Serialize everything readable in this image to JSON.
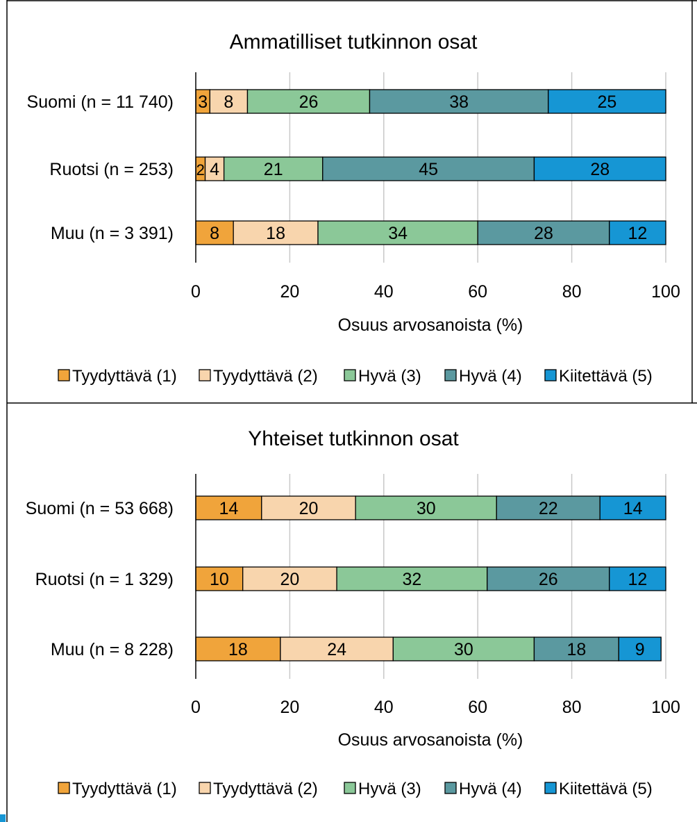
{
  "chart_data": [
    {
      "type": "bar",
      "orientation": "horizontal",
      "stacked": true,
      "title": "Ammatilliset tutkinnon osat",
      "xlabel": "Osuus arvosanoista (%)",
      "ylabel": "",
      "xlim": [
        0,
        100
      ],
      "xticks": [
        "0",
        "20",
        "40",
        "60",
        "80",
        "100"
      ],
      "grid": true,
      "legend_position": "bottom",
      "categories": [
        "Suomi (n = 11 740)",
        "Ruotsi (n = 253)",
        "Muu (n = 3 391)"
      ],
      "series": [
        {
          "name": "Tyydyttävä (1)",
          "color": "#F0A43B",
          "values": [
            3,
            2,
            8
          ]
        },
        {
          "name": "Tyydyttävä (2)",
          "color": "#F8D5AD",
          "values": [
            8,
            4,
            18
          ]
        },
        {
          "name": "Hyvä (3)",
          "color": "#8BC898",
          "values": [
            26,
            21,
            34
          ]
        },
        {
          "name": "Hyvä (4)",
          "color": "#5B99A0",
          "values": [
            38,
            45,
            28
          ]
        },
        {
          "name": "Kiitettävä (5)",
          "color": "#1696D4",
          "values": [
            25,
            28,
            12
          ]
        }
      ]
    },
    {
      "type": "bar",
      "orientation": "horizontal",
      "stacked": true,
      "title": "Yhteiset tutkinnon osat",
      "xlabel": "Osuus arvosanoista (%)",
      "ylabel": "",
      "xlim": [
        0,
        100
      ],
      "xticks": [
        "0",
        "20",
        "40",
        "60",
        "80",
        "100"
      ],
      "grid": true,
      "legend_position": "bottom",
      "categories": [
        "Suomi (n = 53 668)",
        "Ruotsi (n = 1 329)",
        "Muu (n = 8 228)"
      ],
      "series": [
        {
          "name": "Tyydyttävä (1)",
          "color": "#F0A43B",
          "values": [
            14,
            10,
            18
          ]
        },
        {
          "name": "Tyydyttävä (2)",
          "color": "#F8D5AD",
          "values": [
            20,
            20,
            24
          ]
        },
        {
          "name": "Hyvä (3)",
          "color": "#8BC898",
          "values": [
            30,
            32,
            30
          ]
        },
        {
          "name": "Hyvä (4)",
          "color": "#5B99A0",
          "values": [
            22,
            26,
            18
          ]
        },
        {
          "name": "Kiitettävä (5)",
          "color": "#1696D4",
          "values": [
            14,
            12,
            9
          ]
        }
      ]
    }
  ]
}
